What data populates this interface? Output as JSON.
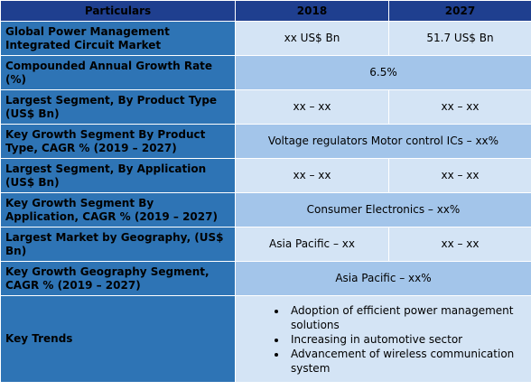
{
  "header": {
    "col1": "Particulars",
    "col2": "2018",
    "col3": "2027"
  },
  "rows": [
    {
      "label": "Global Power Management Integrated Circuit Market",
      "v2018": "xx US$ Bn",
      "v2027": "51.7 US$ Bn"
    },
    {
      "label": "Compounded Annual Growth Rate (%)",
      "value": "6.5%"
    },
    {
      "label": "Largest Segment, By Product Type (US$ Bn)",
      "v2018": "xx – xx",
      "v2027": "xx – xx"
    },
    {
      "label": "Key Growth Segment By Product Type, CAGR % (2019 – 2027)",
      "value": "Voltage regulators Motor control ICs – xx%"
    },
    {
      "label": "Largest Segment, By Application (US$ Bn)",
      "v2018": "xx – xx",
      "v2027": "xx – xx"
    },
    {
      "label": "Key Growth Segment By Application, CAGR % (2019 – 2027)",
      "value": "Consumer Electronics  – xx%"
    },
    {
      "label": "Largest Market by Geography, (US$ Bn)",
      "v2018": "Asia Pacific – xx",
      "v2027": "xx – xx"
    },
    {
      "label": "Key Growth Geography Segment, CAGR % (2019 – 2027)",
      "value": "Asia Pacific – xx%"
    }
  ],
  "trends": {
    "label": "Key Trends",
    "items": [
      "Adoption of efficient power management solutions",
      "Increasing in automotive sector",
      "Advancement of wireless communication system"
    ]
  }
}
